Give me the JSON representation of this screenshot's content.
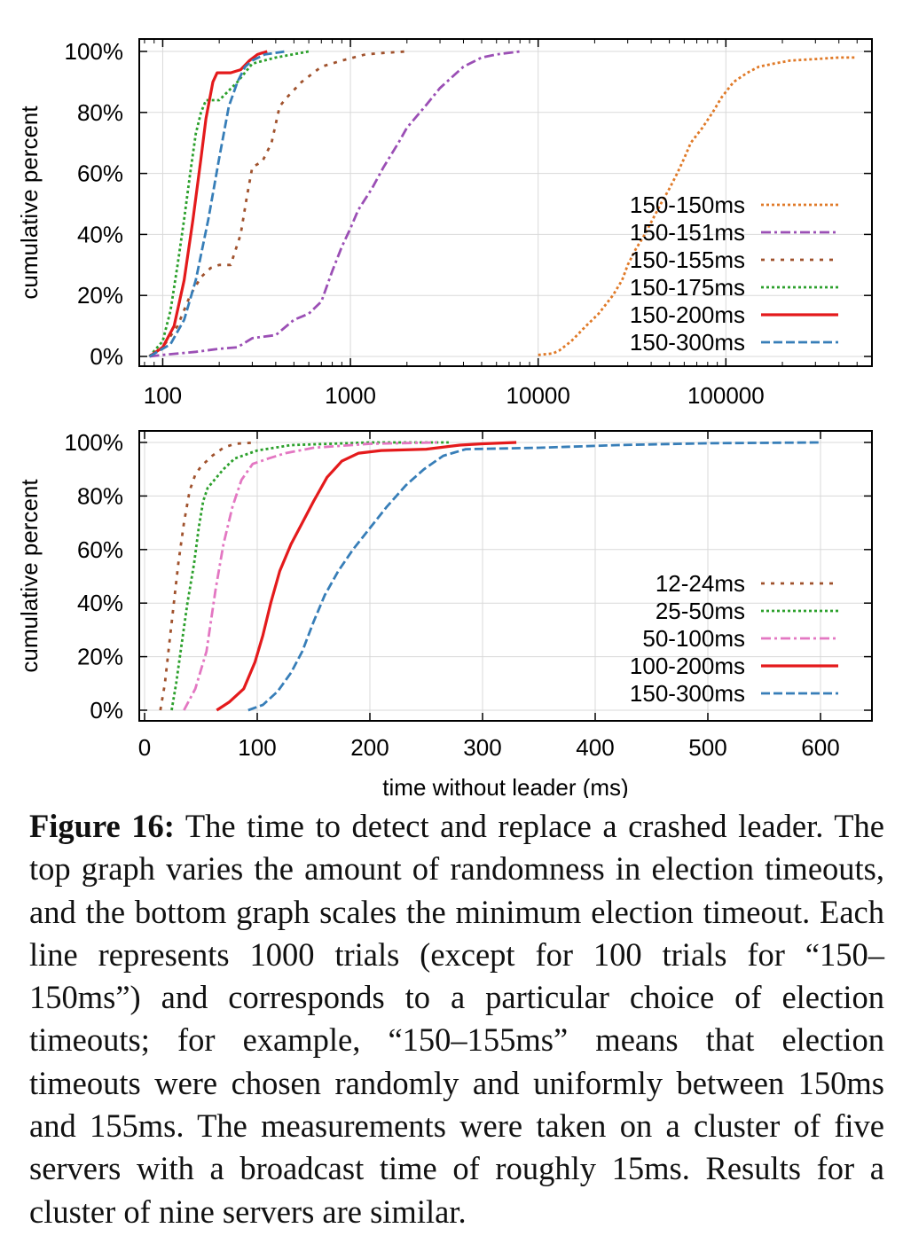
{
  "chart_data": [
    {
      "type": "line",
      "scale": "log",
      "title": "",
      "xlabel": "",
      "ylabel": "cumulative percent",
      "xlim": [
        75,
        600000
      ],
      "ylim": [
        0,
        100
      ],
      "x_ticks": [
        100,
        1000,
        10000,
        100000
      ],
      "x_tick_labels": [
        "100",
        "1000",
        "10000",
        "100000"
      ],
      "y_ticks": [
        0,
        20,
        40,
        60,
        80,
        100
      ],
      "y_tick_labels": [
        "0%",
        "20%",
        "40%",
        "60%",
        "80%",
        "100%"
      ],
      "grid": true,
      "legend_position": "bottom-right",
      "series": [
        {
          "name": "150-150ms",
          "color": "#e07a28",
          "dash": "dotted",
          "points": [
            [
              10000,
              0.5
            ],
            [
              12000,
              1
            ],
            [
              13000,
              2
            ],
            [
              15000,
              5
            ],
            [
              18000,
              10
            ],
            [
              21000,
              14
            ],
            [
              25000,
              20
            ],
            [
              28000,
              25
            ],
            [
              30000,
              30
            ],
            [
              33000,
              35
            ],
            [
              37000,
              40
            ],
            [
              40000,
              44
            ],
            [
              45000,
              50
            ],
            [
              50000,
              55
            ],
            [
              55000,
              60
            ],
            [
              60000,
              65
            ],
            [
              65000,
              70
            ],
            [
              75000,
              75
            ],
            [
              85000,
              80
            ],
            [
              95000,
              85
            ],
            [
              110000,
              90
            ],
            [
              130000,
              93
            ],
            [
              150000,
              95
            ],
            [
              180000,
              96
            ],
            [
              220000,
              97
            ],
            [
              300000,
              97.5
            ],
            [
              400000,
              98
            ],
            [
              500000,
              98
            ]
          ]
        },
        {
          "name": "150-151ms",
          "color": "#9b4fb5",
          "dash": "dashdot",
          "points": [
            [
              85,
              0
            ],
            [
              100,
              0.5
            ],
            [
              150,
              1.5
            ],
            [
              200,
              2.5
            ],
            [
              250,
              3
            ],
            [
              300,
              6
            ],
            [
              400,
              7
            ],
            [
              500,
              12
            ],
            [
              600,
              14
            ],
            [
              700,
              18
            ],
            [
              800,
              28
            ],
            [
              900,
              36
            ],
            [
              1000,
              42
            ],
            [
              1100,
              48
            ],
            [
              1300,
              55
            ],
            [
              1500,
              62
            ],
            [
              1800,
              70
            ],
            [
              2000,
              75
            ],
            [
              2500,
              82
            ],
            [
              3000,
              88
            ],
            [
              4000,
              95
            ],
            [
              5000,
              98
            ],
            [
              6000,
              99
            ],
            [
              8000,
              100
            ]
          ]
        },
        {
          "name": "150-155ms",
          "color": "#a0522d",
          "dash": "dotted-wide",
          "points": [
            [
              85,
              0
            ],
            [
              100,
              3
            ],
            [
              120,
              10
            ],
            [
              140,
              20
            ],
            [
              160,
              26
            ],
            [
              180,
              29
            ],
            [
              200,
              30
            ],
            [
              230,
              30
            ],
            [
              260,
              40
            ],
            [
              280,
              52
            ],
            [
              300,
              62
            ],
            [
              340,
              64
            ],
            [
              380,
              70
            ],
            [
              420,
              82
            ],
            [
              460,
              85
            ],
            [
              550,
              90
            ],
            [
              700,
              95
            ],
            [
              900,
              97
            ],
            [
              1200,
              99
            ],
            [
              1500,
              99.5
            ],
            [
              2000,
              100
            ]
          ]
        },
        {
          "name": "150-175ms",
          "color": "#2ca02c",
          "dash": "dotted",
          "points": [
            [
              85,
              0
            ],
            [
              100,
              5
            ],
            [
              110,
              15
            ],
            [
              120,
              30
            ],
            [
              130,
              45
            ],
            [
              140,
              60
            ],
            [
              150,
              73
            ],
            [
              160,
              80
            ],
            [
              170,
              84
            ],
            [
              200,
              84
            ],
            [
              250,
              90
            ],
            [
              300,
              96
            ],
            [
              400,
              98
            ],
            [
              600,
              100
            ]
          ]
        },
        {
          "name": "150-200ms",
          "color": "#e41a1c",
          "dash": "solid",
          "points": [
            [
              85,
              0
            ],
            [
              100,
              3
            ],
            [
              115,
              10
            ],
            [
              130,
              25
            ],
            [
              145,
              45
            ],
            [
              160,
              65
            ],
            [
              170,
              78
            ],
            [
              185,
              90
            ],
            [
              195,
              93
            ],
            [
              230,
              93
            ],
            [
              260,
              94
            ],
            [
              290,
              97
            ],
            [
              320,
              99
            ],
            [
              360,
              100
            ]
          ]
        },
        {
          "name": "150-300ms",
          "color": "#377eb8",
          "dash": "dashed",
          "points": [
            [
              85,
              0
            ],
            [
              110,
              4
            ],
            [
              130,
              12
            ],
            [
              150,
              25
            ],
            [
              175,
              45
            ],
            [
              200,
              65
            ],
            [
              225,
              82
            ],
            [
              250,
              90
            ],
            [
              275,
              95
            ],
            [
              300,
              97
            ],
            [
              350,
              99
            ],
            [
              450,
              100
            ]
          ]
        }
      ]
    },
    {
      "type": "line",
      "scale": "linear",
      "title": "",
      "xlabel": "time without leader (ms)",
      "ylabel": "cumulative percent",
      "xlim": [
        0,
        650
      ],
      "ylim": [
        0,
        100
      ],
      "x_ticks": [
        0,
        100,
        200,
        300,
        400,
        500,
        600
      ],
      "x_tick_labels": [
        "0",
        "100",
        "200",
        "300",
        "400",
        "500",
        "600"
      ],
      "y_ticks": [
        0,
        20,
        40,
        60,
        80,
        100
      ],
      "y_tick_labels": [
        "0%",
        "20%",
        "40%",
        "60%",
        "80%",
        "100%"
      ],
      "grid": true,
      "legend_position": "bottom-right",
      "series": [
        {
          "name": "12-24ms",
          "color": "#a0522d",
          "dash": "dotted-wide",
          "points": [
            [
              14,
              0
            ],
            [
              18,
              10
            ],
            [
              22,
              25
            ],
            [
              26,
              40
            ],
            [
              30,
              55
            ],
            [
              35,
              70
            ],
            [
              40,
              82
            ],
            [
              45,
              88
            ],
            [
              50,
              91
            ],
            [
              60,
              95
            ],
            [
              70,
              98
            ],
            [
              80,
              99.5
            ],
            [
              100,
              100
            ]
          ]
        },
        {
          "name": "25-50ms",
          "color": "#2ca02c",
          "dash": "dotted",
          "points": [
            [
              24,
              0
            ],
            [
              28,
              10
            ],
            [
              33,
              25
            ],
            [
              38,
              40
            ],
            [
              44,
              55
            ],
            [
              48,
              68
            ],
            [
              52,
              78
            ],
            [
              56,
              83
            ],
            [
              62,
              86
            ],
            [
              70,
              90
            ],
            [
              80,
              94
            ],
            [
              100,
              97
            ],
            [
              130,
              99
            ],
            [
              200,
              100
            ],
            [
              270,
              100
            ]
          ]
        },
        {
          "name": "50-100ms",
          "color": "#e377c2",
          "dash": "dashdot",
          "points": [
            [
              35,
              0
            ],
            [
              45,
              8
            ],
            [
              55,
              22
            ],
            [
              63,
              45
            ],
            [
              70,
              62
            ],
            [
              78,
              76
            ],
            [
              86,
              86
            ],
            [
              96,
              92
            ],
            [
              110,
              94
            ],
            [
              125,
              96
            ],
            [
              150,
              98
            ],
            [
              200,
              99.5
            ],
            [
              260,
              100
            ]
          ]
        },
        {
          "name": "100-200ms",
          "color": "#e41a1c",
          "dash": "solid",
          "points": [
            [
              64,
              0
            ],
            [
              75,
              3
            ],
            [
              88,
              8
            ],
            [
              98,
              18
            ],
            [
              105,
              28
            ],
            [
              112,
              40
            ],
            [
              120,
              52
            ],
            [
              130,
              62
            ],
            [
              140,
              70
            ],
            [
              150,
              78
            ],
            [
              162,
              87
            ],
            [
              175,
              93
            ],
            [
              190,
              96
            ],
            [
              210,
              97
            ],
            [
              250,
              97.5
            ],
            [
              280,
              99
            ],
            [
              300,
              99.5
            ],
            [
              330,
              100
            ]
          ]
        },
        {
          "name": "150-300ms",
          "color": "#377eb8",
          "dash": "dashed",
          "points": [
            [
              92,
              0
            ],
            [
              105,
              2
            ],
            [
              118,
              7
            ],
            [
              130,
              14
            ],
            [
              140,
              22
            ],
            [
              150,
              33
            ],
            [
              160,
              43
            ],
            [
              172,
              52
            ],
            [
              185,
              60
            ],
            [
              200,
              68
            ],
            [
              215,
              76
            ],
            [
              232,
              84
            ],
            [
              248,
              90
            ],
            [
              265,
              95
            ],
            [
              285,
              97.5
            ],
            [
              350,
              98
            ],
            [
              420,
              99
            ],
            [
              500,
              99.7
            ],
            [
              600,
              100
            ]
          ]
        }
      ]
    }
  ],
  "caption": {
    "label": "Figure 16:",
    "text": " The time to detect and replace a crashed leader. The top graph varies the amount of randomness in election timeouts, and the bottom graph scales the minimum election timeout. Each line represents 1000 trials (except for 100 trials for “150–150ms”) and corresponds to a particular choice of election timeouts; for example, “150–155ms” means that election timeouts were chosen randomly and uniformly between 150ms and 155ms. The measurements were taken on a cluster of five servers with a broadcast time of roughly 15ms. Results for a cluster of nine servers are similar."
  }
}
